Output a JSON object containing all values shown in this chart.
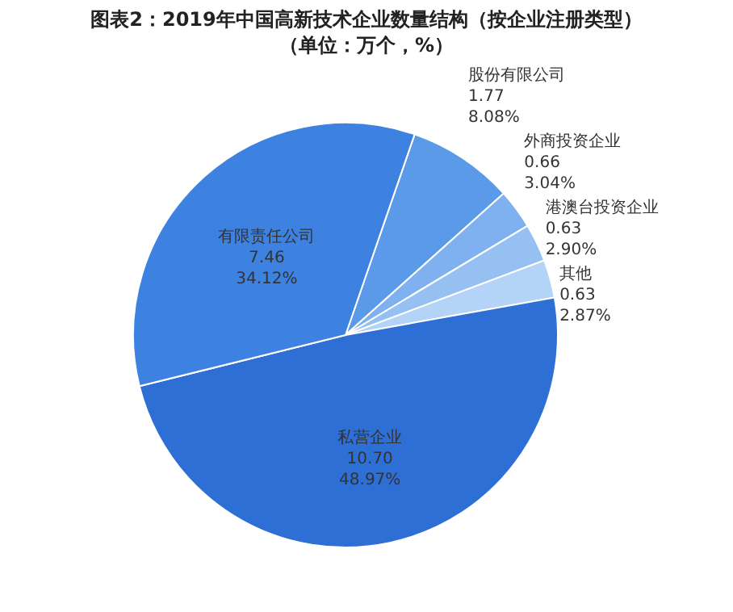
{
  "chart_data": {
    "type": "pie",
    "title": "图表2：2019年中国高新技术企业数量结构（按企业注册类型）",
    "subtitle": "（单位：万个，%）",
    "categories": [
      "股份有限公司",
      "外商投资企业",
      "港澳台投资企业",
      "其他",
      "私营企业",
      "有限责任公司"
    ],
    "values": [
      1.77,
      0.66,
      0.63,
      0.63,
      10.7,
      7.46
    ],
    "value_labels": [
      "1.77\n8.08%",
      "0.66\n3.04%",
      "0.63\n2.90%",
      "0.63\n2.87%",
      "10.70\n48.97%",
      "7.46\n34.12%"
    ],
    "colors": [
      "#5b9ae8",
      "#7fb0ef",
      "#96c0f2",
      "#b3d3f7",
      "#2e6fd6",
      "#3d82e0"
    ],
    "legend": false
  }
}
